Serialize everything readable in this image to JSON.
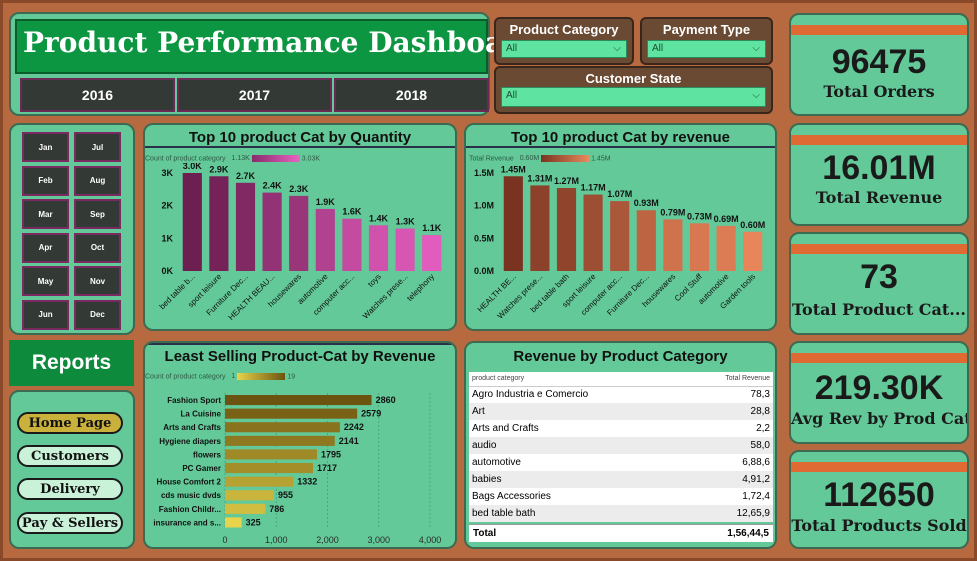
{
  "header": {
    "title": "Product Performance Dashboard",
    "years": [
      "2016",
      "2017",
      "2018"
    ]
  },
  "slicers": {
    "product_category": {
      "label": "Product Category",
      "value": "All"
    },
    "payment_type": {
      "label": "Payment Type",
      "value": "All"
    },
    "customer_state": {
      "label": "Customer State",
      "value": "All"
    }
  },
  "kpis": [
    {
      "value": "96475",
      "caption": "Total Orders"
    },
    {
      "value": "16.01M",
      "caption": "Total Revenue"
    },
    {
      "value": "73",
      "caption": "Total Product Cat..."
    },
    {
      "value": "219.30K",
      "caption": "Avg Rev by Prod Cat"
    },
    {
      "value": "112650",
      "caption": "Total Products Sold"
    }
  ],
  "months": [
    "Jan",
    "Jul",
    "Feb",
    "Aug",
    "Mar",
    "Sep",
    "Apr",
    "Oct",
    "May",
    "Nov",
    "Jun",
    "Dec"
  ],
  "nav": {
    "reports": "Reports",
    "buttons": [
      "Home Page",
      "Customers",
      "Delivery",
      "Pay & Sellers"
    ]
  },
  "colors": {
    "accent_orange": "#e06a33",
    "panel_green": "#63c999",
    "title_green": "#0d9642"
  },
  "chart_data": [
    {
      "type": "bar",
      "title": "Top 10 product Cat by Quantity",
      "legend": {
        "label": "Count of product category",
        "min": "1.13K",
        "max": "3.03K"
      },
      "categories": [
        "bed table b...",
        "sport leisure",
        "Furniture Dec...",
        "HEALTH BEAU...",
        "housewares",
        "automotive",
        "computer acc...",
        "toys",
        "Watches prese...",
        "telephony"
      ],
      "values": [
        3.0,
        2.9,
        2.7,
        2.4,
        2.3,
        1.9,
        1.6,
        1.4,
        1.3,
        1.1
      ],
      "data_labels": [
        "3.0K",
        "2.9K",
        "2.7K",
        "2.4K",
        "2.3K",
        "1.9K",
        "1.6K",
        "1.4K",
        "1.3K",
        "1.1K"
      ],
      "yticks": [
        "0K",
        "1K",
        "2K",
        "3K"
      ],
      "ylim": [
        0,
        3
      ]
    },
    {
      "type": "bar",
      "title": "Top 10 product Cat by revenue",
      "legend": {
        "label": "Total Revenue",
        "min": "0.60M",
        "max": "1.45M"
      },
      "categories": [
        "HEALTH BE...",
        "Watches prese...",
        "bed table bath",
        "sport leisure",
        "computer acc...",
        "Furniture Dec...",
        "housewares",
        "Cool Stuff",
        "automotive",
        "Garden tools"
      ],
      "values": [
        1.45,
        1.31,
        1.27,
        1.17,
        1.07,
        0.93,
        0.79,
        0.73,
        0.69,
        0.6
      ],
      "data_labels": [
        "1.45M",
        "1.31M",
        "1.27M",
        "1.17M",
        "1.07M",
        "0.93M",
        "0.79M",
        "0.73M",
        "0.69M",
        "0.60M"
      ],
      "yticks": [
        "0.0M",
        "0.5M",
        "1.0M",
        "1.5M"
      ],
      "ylim": [
        0,
        1.5
      ]
    },
    {
      "type": "bar",
      "orientation": "horizontal",
      "title": "Least Selling Product-Cat by Revenue",
      "legend": {
        "label": "Count of product category",
        "min": "1",
        "max": "19"
      },
      "categories": [
        "Fashion Sport",
        "La Cuisine",
        "Arts and Crafts",
        "Hygiene diapers",
        "flowers",
        "PC Gamer",
        "House Comfort 2",
        "cds music dvds",
        "Fashion Childr...",
        "insurance and s..."
      ],
      "values": [
        2860,
        2579,
        2242,
        2141,
        1795,
        1717,
        1332,
        955,
        786,
        325
      ],
      "xticks": [
        "0",
        "1,000",
        "2,000",
        "3,000",
        "4,000"
      ],
      "xlim": [
        0,
        4000
      ]
    }
  ],
  "revenue_table": {
    "title": "Revenue by Product Category",
    "columns": [
      "product category",
      "Total Revenue"
    ],
    "rows": [
      [
        "Agro Industria e Comercio",
        "78,3"
      ],
      [
        "Art",
        "28,8"
      ],
      [
        "Arts and Crafts",
        "2,2"
      ],
      [
        "audio",
        "58,0"
      ],
      [
        "automotive",
        "6,88,6"
      ],
      [
        "babies",
        "4,91,2"
      ],
      [
        "Bags Accessories",
        "1,72,4"
      ],
      [
        "bed table bath",
        "12,65,9"
      ]
    ],
    "total_label": "Total",
    "total_value": "1,56,44,5"
  }
}
